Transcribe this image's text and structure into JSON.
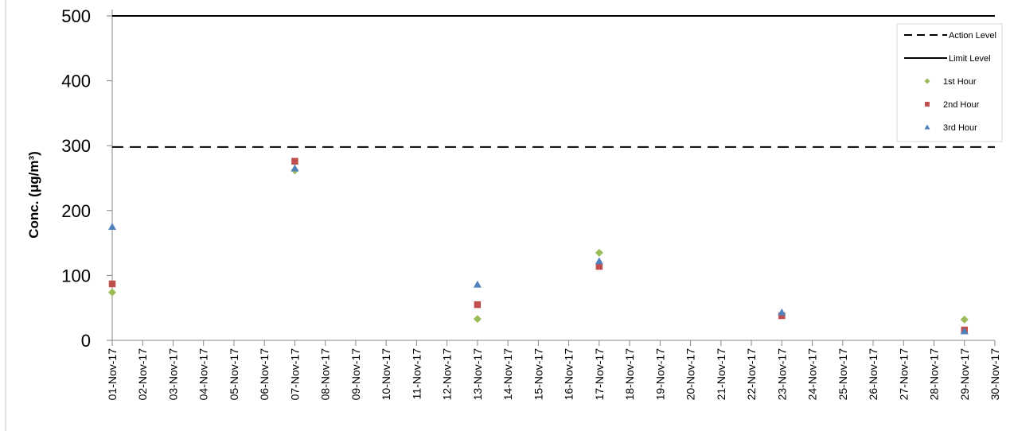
{
  "chart_data": {
    "type": "scatter",
    "ylabel": "Conc. (μg/m³)",
    "xlabel": "",
    "ylim": [
      0,
      500
    ],
    "y_ticks": [
      0,
      100,
      200,
      300,
      400,
      500
    ],
    "x_ticks": [
      "01-Nov-17",
      "02-Nov-17",
      "03-Nov-17",
      "04-Nov-17",
      "05-Nov-17",
      "06-Nov-17",
      "07-Nov-17",
      "08-Nov-17",
      "09-Nov-17",
      "10-Nov-17",
      "11-Nov-17",
      "12-Nov-17",
      "13-Nov-17",
      "14-Nov-17",
      "15-Nov-17",
      "16-Nov-17",
      "17-Nov-17",
      "18-Nov-17",
      "19-Nov-17",
      "20-Nov-17",
      "21-Nov-17",
      "22-Nov-17",
      "23-Nov-17",
      "24-Nov-17",
      "25-Nov-17",
      "26-Nov-17",
      "27-Nov-17",
      "28-Nov-17",
      "29-Nov-17",
      "30-Nov-17"
    ],
    "reference_lines": [
      {
        "name": "Action Level",
        "value": 298,
        "style": "dashed",
        "color": "#000000"
      },
      {
        "name": "Limit Level",
        "value": 500,
        "style": "solid",
        "color": "#000000"
      }
    ],
    "series": [
      {
        "name": "1st Hour",
        "marker": "diamond",
        "color": "#9bbb59",
        "points": [
          [
            "01-Nov-17",
            74
          ],
          [
            "07-Nov-17",
            262
          ],
          [
            "13-Nov-17",
            33
          ],
          [
            "17-Nov-17",
            135
          ],
          [
            "23-Nov-17",
            40
          ],
          [
            "29-Nov-17",
            32
          ]
        ]
      },
      {
        "name": "2nd Hour",
        "marker": "square",
        "color": "#c0504d",
        "points": [
          [
            "01-Nov-17",
            87
          ],
          [
            "07-Nov-17",
            276
          ],
          [
            "13-Nov-17",
            55
          ],
          [
            "17-Nov-17",
            114
          ],
          [
            "23-Nov-17",
            38
          ],
          [
            "29-Nov-17",
            16
          ]
        ]
      },
      {
        "name": "3rd Hour",
        "marker": "triangle",
        "color": "#4f81bd",
        "points": [
          [
            "01-Nov-17",
            175
          ],
          [
            "07-Nov-17",
            265
          ],
          [
            "13-Nov-17",
            86
          ],
          [
            "17-Nov-17",
            122
          ],
          [
            "23-Nov-17",
            43
          ],
          [
            "29-Nov-17",
            14
          ]
        ]
      }
    ],
    "legend_position": "top-right",
    "grid": false
  }
}
